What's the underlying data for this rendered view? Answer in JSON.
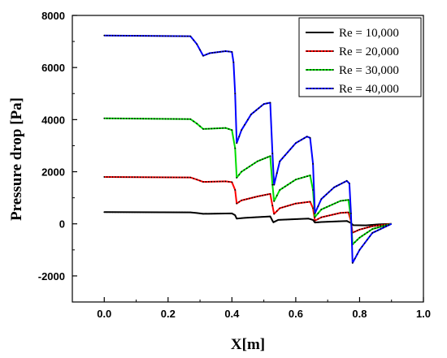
{
  "chart_data": {
    "type": "line",
    "xlabel": "X[m]",
    "ylabel": "Pressure drop [Pa]",
    "xlim": [
      -0.1,
      1.0
    ],
    "ylim": [
      -3000,
      8000
    ],
    "xticks": [
      0.0,
      0.2,
      0.4,
      0.6,
      0.8,
      1.0
    ],
    "xtick_labels": [
      "0.0",
      "0.2",
      "0.4",
      "0.6",
      "0.8",
      "1.0"
    ],
    "yticks": [
      -2000,
      0,
      2000,
      4000,
      6000,
      8000
    ],
    "ytick_labels": [
      "-2000",
      "0",
      "2000",
      "4000",
      "6000",
      "8000"
    ],
    "grid": false,
    "legend_position": "top-right",
    "series": [
      {
        "name": "Re = 10,000",
        "color": "#000000",
        "points": [
          [
            0.0,
            450
          ],
          [
            0.27,
            440
          ],
          [
            0.29,
            415
          ],
          [
            0.31,
            385
          ],
          [
            0.4,
            400
          ],
          [
            0.41,
            330
          ],
          [
            0.415,
            200
          ],
          [
            0.44,
            230
          ],
          [
            0.52,
            285
          ],
          [
            0.527,
            120
          ],
          [
            0.53,
            60
          ],
          [
            0.545,
            150
          ],
          [
            0.64,
            200
          ],
          [
            0.654,
            150
          ],
          [
            0.66,
            50
          ],
          [
            0.68,
            70
          ],
          [
            0.76,
            110
          ],
          [
            0.773,
            30
          ],
          [
            0.78,
            -50
          ],
          [
            0.82,
            -60
          ],
          [
            0.86,
            -20
          ],
          [
            0.9,
            0
          ]
        ]
      },
      {
        "name": "Re = 20,000",
        "color": "#ff0000",
        "points": [
          [
            0.0,
            1800
          ],
          [
            0.27,
            1780
          ],
          [
            0.29,
            1700
          ],
          [
            0.31,
            1610
          ],
          [
            0.38,
            1630
          ],
          [
            0.4,
            1600
          ],
          [
            0.41,
            1300
          ],
          [
            0.415,
            780
          ],
          [
            0.43,
            900
          ],
          [
            0.48,
            1050
          ],
          [
            0.52,
            1150
          ],
          [
            0.527,
            700
          ],
          [
            0.532,
            380
          ],
          [
            0.55,
            600
          ],
          [
            0.6,
            780
          ],
          [
            0.645,
            850
          ],
          [
            0.654,
            600
          ],
          [
            0.66,
            120
          ],
          [
            0.68,
            250
          ],
          [
            0.74,
            420
          ],
          [
            0.765,
            440
          ],
          [
            0.773,
            100
          ],
          [
            0.778,
            -340
          ],
          [
            0.8,
            -220
          ],
          [
            0.84,
            -90
          ],
          [
            0.9,
            0
          ]
        ]
      },
      {
        "name": "Re = 30,000",
        "color": "#00dd00",
        "points": [
          [
            0.0,
            4050
          ],
          [
            0.27,
            4020
          ],
          [
            0.29,
            3850
          ],
          [
            0.31,
            3640
          ],
          [
            0.38,
            3680
          ],
          [
            0.4,
            3600
          ],
          [
            0.41,
            2900
          ],
          [
            0.415,
            1770
          ],
          [
            0.43,
            2000
          ],
          [
            0.48,
            2400
          ],
          [
            0.52,
            2600
          ],
          [
            0.527,
            1500
          ],
          [
            0.532,
            870
          ],
          [
            0.55,
            1300
          ],
          [
            0.6,
            1700
          ],
          [
            0.645,
            1860
          ],
          [
            0.654,
            1300
          ],
          [
            0.66,
            260
          ],
          [
            0.68,
            550
          ],
          [
            0.74,
            880
          ],
          [
            0.765,
            920
          ],
          [
            0.773,
            200
          ],
          [
            0.778,
            -790
          ],
          [
            0.8,
            -530
          ],
          [
            0.84,
            -200
          ],
          [
            0.9,
            0
          ]
        ]
      },
      {
        "name": "Re = 40,000",
        "color": "#0000ff",
        "points": [
          [
            0.0,
            7230
          ],
          [
            0.27,
            7200
          ],
          [
            0.29,
            6900
          ],
          [
            0.31,
            6450
          ],
          [
            0.33,
            6550
          ],
          [
            0.38,
            6630
          ],
          [
            0.4,
            6600
          ],
          [
            0.405,
            6200
          ],
          [
            0.41,
            5000
          ],
          [
            0.415,
            3100
          ],
          [
            0.43,
            3600
          ],
          [
            0.46,
            4200
          ],
          [
            0.5,
            4600
          ],
          [
            0.52,
            4650
          ],
          [
            0.527,
            2700
          ],
          [
            0.532,
            1500
          ],
          [
            0.55,
            2400
          ],
          [
            0.6,
            3100
          ],
          [
            0.635,
            3350
          ],
          [
            0.645,
            3300
          ],
          [
            0.654,
            2300
          ],
          [
            0.66,
            400
          ],
          [
            0.68,
            950
          ],
          [
            0.72,
            1400
          ],
          [
            0.76,
            1650
          ],
          [
            0.768,
            1550
          ],
          [
            0.773,
            400
          ],
          [
            0.778,
            -1500
          ],
          [
            0.8,
            -1000
          ],
          [
            0.84,
            -350
          ],
          [
            0.9,
            0
          ]
        ]
      }
    ]
  }
}
